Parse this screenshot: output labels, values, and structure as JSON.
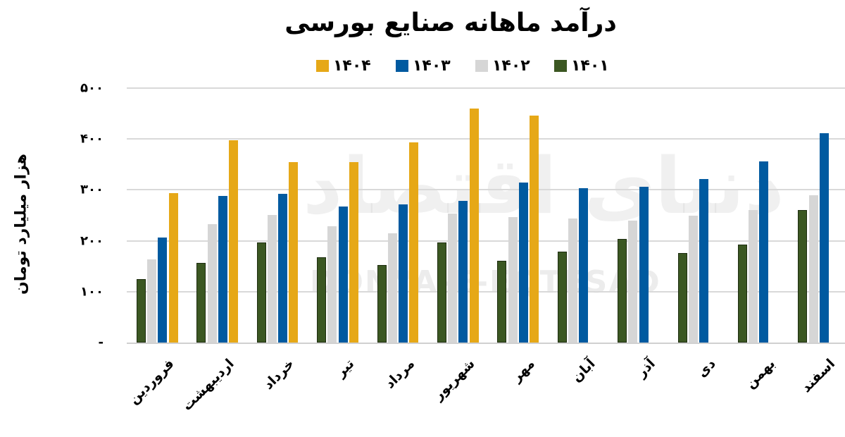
{
  "chart_data": {
    "type": "bar",
    "title": "درآمد ماهانه صنایع بورسی",
    "xlabel": "",
    "ylabel": "هزار میلیارد تومان",
    "ylim": [
      0,
      500
    ],
    "yticks": [
      0,
      100,
      200,
      300,
      400,
      500
    ],
    "ytick_labels": [
      "-",
      "۱۰۰",
      "۲۰۰",
      "۳۰۰",
      "۴۰۰",
      "۵۰۰"
    ],
    "grid": true,
    "legend_position": "top",
    "categories": [
      "فروردین",
      "اردیبهشت",
      "خرداد",
      "تیر",
      "مرداد",
      "شهریور",
      "مهر",
      "آبان",
      "آذر",
      "دی",
      "بهمن",
      "اسفند"
    ],
    "series": [
      {
        "name": "۱۴۰۱",
        "color": "#3b5722",
        "values": [
          125,
          157,
          197,
          167,
          153,
          196,
          160,
          179,
          203,
          176,
          192,
          260
        ]
      },
      {
        "name": "۱۴۰۲",
        "color": "#d6d6d6",
        "values": [
          164,
          233,
          251,
          228,
          215,
          253,
          246,
          244,
          240,
          250,
          260,
          290
        ]
      },
      {
        "name": "۱۴۰۳",
        "color": "#005aa0",
        "values": [
          206,
          288,
          292,
          268,
          272,
          279,
          314,
          304,
          306,
          322,
          356,
          411
        ]
      },
      {
        "name": "۱۴۰۴",
        "color": "#e6a817",
        "values": [
          293,
          397,
          354,
          354,
          394,
          460,
          446,
          null,
          null,
          null,
          null,
          null
        ]
      }
    ]
  },
  "legend": [
    {
      "label": "۱۴۰۴",
      "color": "#e6a817"
    },
    {
      "label": "۱۴۰۳",
      "color": "#005aa0"
    },
    {
      "label": "۱۴۰۲",
      "color": "#d6d6d6"
    },
    {
      "label": "۱۴۰۱",
      "color": "#3b5722"
    }
  ],
  "watermark": {
    "latin": "DONYA-E-EQTESAD",
    "persian": "دنیای اقتصاد"
  }
}
